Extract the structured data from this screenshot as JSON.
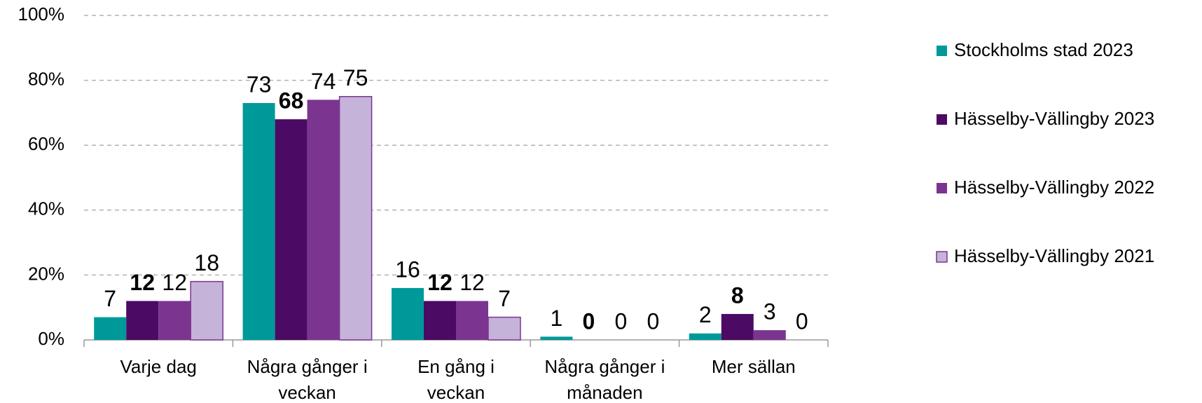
{
  "chart_data": {
    "type": "bar",
    "categories": [
      "Varje dag",
      "Några gånger i veckan",
      "En gång i veckan",
      "Några gånger i månaden",
      "Mer sällan"
    ],
    "series": [
      {
        "name": "Stockholms stad 2023",
        "color": "#009999",
        "values": [
          7,
          73,
          16,
          1,
          2
        ]
      },
      {
        "name": "Hässelby-Vällingby 2023",
        "color": "#4b0a64",
        "values": [
          12,
          68,
          12,
          0,
          8
        ],
        "bold": true
      },
      {
        "name": "Hässelby-Vällingby 2022",
        "color": "#7b3590",
        "values": [
          12,
          74,
          12,
          0,
          3
        ]
      },
      {
        "name": "Hässelby-Vällingby 2021",
        "color": "#c5b3d9",
        "values": [
          18,
          75,
          7,
          0,
          0
        ]
      }
    ],
    "ylim": [
      0,
      100
    ],
    "yticks": [
      {
        "value": 0,
        "label": "0%"
      },
      {
        "value": 20,
        "label": "20%"
      },
      {
        "value": 40,
        "label": "40%"
      },
      {
        "value": 60,
        "label": "60%"
      },
      {
        "value": 80,
        "label": "80%"
      },
      {
        "value": 100,
        "label": "100%"
      }
    ],
    "grid": true,
    "legend": "right"
  }
}
